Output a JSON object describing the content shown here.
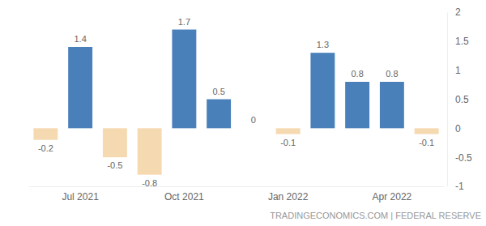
{
  "chart_data": {
    "type": "bar",
    "categories": [
      null,
      "Jul 2021",
      null,
      null,
      "Oct 2021",
      null,
      null,
      "Jan 2022",
      null,
      null,
      "Apr 2022",
      null
    ],
    "values": [
      -0.2,
      1.4,
      -0.5,
      -0.8,
      1.7,
      0.5,
      0,
      -0.1,
      1.3,
      0.8,
      0.8,
      -0.1
    ],
    "colors": [
      "#f5d9b1",
      "#4a80b9",
      "#f5d9b1",
      "#f5d9b1",
      "#4a80b9",
      "#4a80b9",
      "#4a80b9",
      "#f5d9b1",
      "#4a80b9",
      "#4a80b9",
      "#4a80b9",
      "#f5d9b1"
    ],
    "ylim": [
      -1,
      2
    ],
    "yticks": [
      -1,
      -0.5,
      0,
      0.5,
      1,
      1.5,
      2
    ],
    "grid": false,
    "data_labels": true,
    "source": "TRADINGECONOMICS.COM | FEDERAL RESERVE"
  }
}
